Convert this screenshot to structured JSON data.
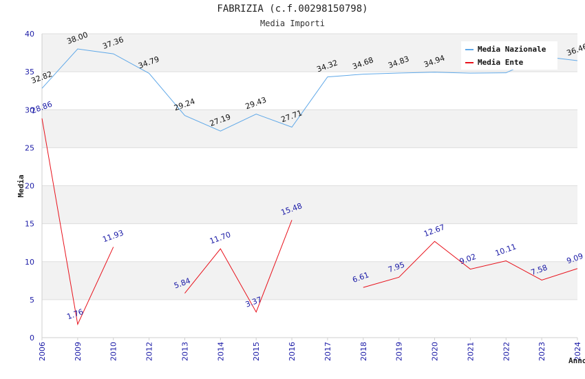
{
  "chart_data": {
    "type": "line",
    "title": "FABRIZIA (c.f.00298150798)",
    "subtitle": "Media Importi",
    "xlabel": "Anno",
    "ylabel": "Media",
    "ylim": [
      0,
      40
    ],
    "yticks": [
      0,
      5,
      10,
      15,
      20,
      25,
      30,
      35,
      40
    ],
    "categories": [
      "2006",
      "2009",
      "2010",
      "2012",
      "2013",
      "2014",
      "2015",
      "2016",
      "2017",
      "2018",
      "2019",
      "2020",
      "2021",
      "2022",
      "2023",
      "2024"
    ],
    "series": [
      {
        "name": "Media Nazionale",
        "color": "#5fa8e8",
        "label_color": "#111111",
        "values": [
          32.82,
          38.0,
          37.36,
          34.79,
          29.24,
          27.19,
          29.43,
          27.71,
          34.32,
          34.68,
          34.83,
          34.94,
          34.82,
          34.86,
          37.02,
          36.46
        ],
        "labels": [
          "32.82",
          "38.00",
          "37.36",
          "34.79",
          "29.24",
          "27.19",
          "29.43",
          "27.71",
          "34.32",
          "34.68",
          "34.83",
          "34.94",
          "",
          "",
          "",
          "36.46"
        ]
      },
      {
        "name": "Media Ente",
        "color": "#e8101a",
        "label_color": "#1a1aa6",
        "values": [
          28.86,
          1.76,
          11.93,
          null,
          5.84,
          11.7,
          3.37,
          15.48,
          null,
          6.61,
          7.95,
          12.67,
          9.02,
          10.11,
          7.58,
          9.09
        ],
        "labels": [
          "28.86",
          "1.76",
          "11.93",
          "",
          "5.84",
          "11.70",
          "3.37",
          "15.48",
          "",
          "6.61",
          "7.95",
          "12.67",
          "9.02",
          "10.11",
          "7.58",
          "9.09"
        ]
      }
    ],
    "legend": "top-right",
    "grid": true
  }
}
